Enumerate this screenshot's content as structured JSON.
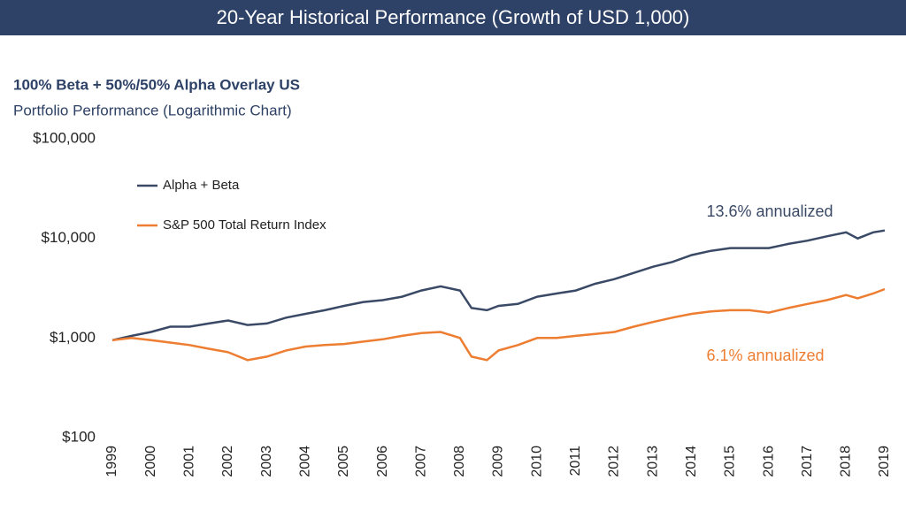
{
  "chart_data": {
    "type": "line",
    "title": "20-Year Historical Performance (Growth of USD 1,000)",
    "subtitle": "100% Beta + 50%/50% Alpha Overlay US",
    "subtitle2": "Portfolio Performance (Logarithmic Chart)",
    "y_scale": "log",
    "xlim": [
      1999,
      2019
    ],
    "xticks": [
      1999,
      2000,
      2001,
      2002,
      2003,
      2004,
      2005,
      2006,
      2007,
      2008,
      2009,
      2010,
      2011,
      2012,
      2013,
      2014,
      2015,
      2016,
      2017,
      2018,
      2019
    ],
    "ylim": [
      100,
      100000
    ],
    "yticks": [
      {
        "value": 100,
        "label": "$100"
      },
      {
        "value": 1000,
        "label": "$1,000"
      },
      {
        "value": 10000,
        "label": "$10,000"
      },
      {
        "value": 100000,
        "label": "$100,000"
      }
    ],
    "grid": false,
    "legend": "upper left",
    "x": [
      1999.0,
      1999.5,
      2000.0,
      2000.5,
      2001.0,
      2001.5,
      2002.0,
      2002.5,
      2003.0,
      2003.5,
      2004.0,
      2004.5,
      2005.0,
      2005.5,
      2006.0,
      2006.5,
      2007.0,
      2007.5,
      2008.0,
      2008.3,
      2008.7,
      2009.0,
      2009.5,
      2010.0,
      2010.5,
      2011.0,
      2011.5,
      2012.0,
      2012.5,
      2013.0,
      2013.5,
      2014.0,
      2014.5,
      2015.0,
      2015.5,
      2016.0,
      2016.5,
      2017.0,
      2017.5,
      2018.0,
      2018.3,
      2018.7,
      2019.0
    ],
    "series": [
      {
        "name": "Alpha + Beta",
        "color": "#3a4a66",
        "annotation": "13.6% annualized",
        "values": [
          950,
          1050,
          1150,
          1300,
          1300,
          1400,
          1500,
          1350,
          1400,
          1600,
          1750,
          1900,
          2100,
          2300,
          2400,
          2600,
          3000,
          3300,
          3000,
          2000,
          1900,
          2100,
          2200,
          2600,
          2800,
          3000,
          3500,
          3900,
          4500,
          5200,
          5800,
          6800,
          7500,
          8000,
          8000,
          8000,
          8800,
          9500,
          10500,
          11500,
          10000,
          11500,
          12000
        ]
      },
      {
        "name": "S&P 500 Total Return Index",
        "color": "#ed7d31",
        "annotation": "6.1% annualized",
        "values": [
          950,
          1000,
          950,
          900,
          850,
          780,
          720,
          600,
          650,
          750,
          820,
          850,
          870,
          920,
          970,
          1050,
          1120,
          1150,
          1000,
          650,
          600,
          750,
          850,
          1000,
          1000,
          1050,
          1100,
          1150,
          1300,
          1450,
          1600,
          1750,
          1850,
          1900,
          1900,
          1800,
          2000,
          2200,
          2400,
          2700,
          2500,
          2800,
          3100
        ]
      }
    ]
  }
}
